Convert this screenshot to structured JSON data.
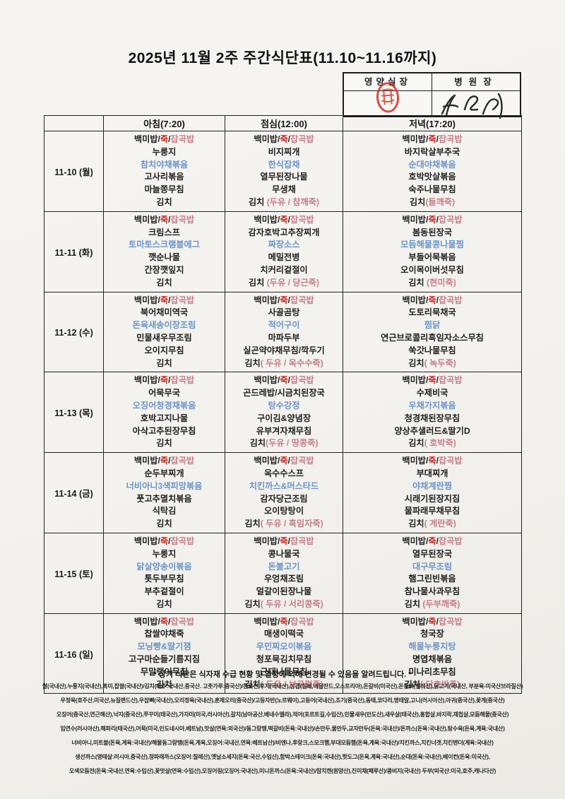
{
  "title": "2025년 11월 2주 주간식단표(11.10~11.16까지)",
  "approval": {
    "nutrition_manager_label": "영양실장",
    "hospital_director_label": "병원장",
    "stamp_icon": "red-seal-stamp",
    "signature_icon": "handwritten-signature",
    "stamp_color": "#cf2a1d"
  },
  "colors": {
    "accent_blue": "#6b94c8",
    "accent_red": "#c9241f",
    "accent_pink": "#c57f8b"
  },
  "table": {
    "corner_label": "",
    "headers": [
      "아침(7:20)",
      "점심(12:00)",
      "저녁(17:20)"
    ],
    "rows": [
      {
        "date": "11-10 (월)",
        "breakfast": [
          [
            [
              "백미밥/",
              "k"
            ],
            [
              "죽",
              "r"
            ],
            [
              "/",
              "k"
            ],
            [
              "잡곡밥",
              "p"
            ]
          ],
          "누룽지",
          [
            [
              "참치야채볶음",
              "b"
            ]
          ],
          "고사리볶음",
          "마늘쫑무침",
          "김치"
        ],
        "lunch": [
          [
            [
              "백미밥/",
              "k"
            ],
            [
              "죽",
              "r"
            ],
            [
              "/",
              "k"
            ],
            [
              "잡곡밥",
              "p"
            ]
          ],
          "비지찌개",
          [
            [
              "한식잡채",
              "b"
            ]
          ],
          "열무된장나물",
          "무생채",
          [
            [
              "김치 ",
              "k"
            ],
            [
              "(두유 / 참깨죽)",
              "p"
            ]
          ]
        ],
        "dinner": [
          [
            [
              "백미밥/",
              "k"
            ],
            [
              "죽",
              "r"
            ],
            [
              "/",
              "k"
            ],
            [
              "잡곡밥",
              "p"
            ]
          ],
          "바지락살부추국",
          [
            [
              "순대야채볶음",
              "b"
            ]
          ],
          "호박맛살볶음",
          "숙주나물무침",
          [
            [
              "김치",
              "k"
            ],
            [
              "(들깨죽)",
              "p"
            ]
          ]
        ]
      },
      {
        "date": "11-11 (화)",
        "breakfast": [
          [
            [
              "백미밥/",
              "k"
            ],
            [
              "죽",
              "r"
            ],
            [
              "/",
              "k"
            ],
            [
              "잡곡밥",
              "p"
            ]
          ],
          "크림스프",
          [
            [
              "토마토스크램블에그",
              "b"
            ]
          ],
          "깻순나물",
          "간장깻잎지",
          "김치"
        ],
        "lunch": [
          [
            [
              "백미밥/",
              "k"
            ],
            [
              "죽",
              "r"
            ],
            [
              "/",
              "k"
            ],
            [
              "잡곡밥",
              "p"
            ]
          ],
          "감자호박고추장찌개",
          [
            [
              "짜장소스",
              "b"
            ]
          ],
          "메밀전병",
          "치커리겉절이",
          [
            [
              "김치 ",
              "k"
            ],
            [
              "(두유 / 당근죽)",
              "p"
            ]
          ]
        ],
        "dinner": [
          [
            [
              "백미밥/",
              "k"
            ],
            [
              "죽",
              "r"
            ],
            [
              "/",
              "k"
            ],
            [
              "잡곡밥",
              "p"
            ]
          ],
          "봄동된장국",
          [
            [
              "모듬해물콩나물찜",
              "b"
            ]
          ],
          "부들어묵볶음",
          "오이목이버섯무침",
          [
            [
              "김치 ",
              "k"
            ],
            [
              "(현미죽)",
              "p"
            ]
          ]
        ]
      },
      {
        "date": "11-12 (수)",
        "breakfast": [
          [
            [
              "백미밥/",
              "k"
            ],
            [
              "죽",
              "r"
            ],
            [
              "/",
              "k"
            ],
            [
              "잡곡밥",
              "p"
            ]
          ],
          "북어채미역국",
          [
            [
              "돈육새송이장조림",
              "b"
            ]
          ],
          "민물새우무조림",
          "오이지무침",
          "김치"
        ],
        "lunch": [
          [
            [
              "백미밥/",
              "k"
            ],
            [
              "죽",
              "r"
            ],
            [
              "/",
              "k"
            ],
            [
              "잡곡밥",
              "p"
            ]
          ],
          "사골곰탕",
          [
            [
              "적어구이",
              "b"
            ]
          ],
          "마파두부",
          "실곤약야채무침/깍두기",
          [
            [
              "김치",
              "k"
            ],
            [
              "( 두유 / 옥수수죽)",
              "p"
            ]
          ]
        ],
        "dinner": [
          [
            [
              "백미밥/",
              "k"
            ],
            [
              "죽",
              "r"
            ],
            [
              "/",
              "k"
            ],
            [
              "잡곡밥",
              "p"
            ]
          ],
          "도토리묵채국",
          [
            [
              "찜닭",
              "b"
            ]
          ],
          "연근브로콜리흑임자소스무침",
          "쑥갓나물무침",
          [
            [
              "김치",
              "k"
            ],
            [
              "( 녹두죽)",
              "p"
            ]
          ]
        ]
      },
      {
        "date": "11-13 (목)",
        "breakfast": [
          [
            [
              "백미밥/",
              "k"
            ],
            [
              "죽",
              "r"
            ],
            [
              "/",
              "k"
            ],
            [
              "잡곡밥",
              "p"
            ]
          ],
          "어묵무국",
          [
            [
              "오징어청경채볶음",
              "b"
            ]
          ],
          "호박고지나물",
          "아삭고추된장무침",
          "김치"
        ],
        "lunch": [
          [
            [
              "백미밥/",
              "k"
            ],
            [
              "죽",
              "r"
            ],
            [
              "/",
              "k"
            ],
            [
              "잡곡밥",
              "p"
            ]
          ],
          "곤드레밥/시금치된장국",
          [
            [
              "탕수강정",
              "b"
            ]
          ],
          "구이김&양념장",
          "유부겨자채무침",
          [
            [
              "김치",
              "k"
            ],
            [
              "(두유 / 땅콩죽)",
              "p"
            ]
          ]
        ],
        "dinner": [
          [
            [
              "백미밥/",
              "k"
            ],
            [
              "죽",
              "r"
            ],
            [
              "/",
              "k"
            ],
            [
              "잡곡밥",
              "p"
            ]
          ],
          "수제비국",
          [
            [
              "우채가지볶음",
              "b"
            ]
          ],
          "청경채된장무침",
          "양상추샐러드&딸기D",
          [
            [
              "김치",
              "k"
            ],
            [
              "( 호박죽)",
              "p"
            ]
          ]
        ]
      },
      {
        "date": "11-14 (금)",
        "breakfast": [
          [
            [
              "백미밥/",
              "k"
            ],
            [
              "죽",
              "r"
            ],
            [
              "/",
              "k"
            ],
            [
              "잡곡밥",
              "p"
            ]
          ],
          "순두부찌개",
          [
            [
              "너비아니3색피망볶음",
              "b"
            ]
          ],
          "풋고추멸치볶음",
          "식탁김",
          "김치"
        ],
        "lunch": [
          [
            [
              "백미밥/",
              "k"
            ],
            [
              "죽",
              "r"
            ],
            [
              "/",
              "k"
            ],
            [
              "잡곡밥",
              "p"
            ]
          ],
          "옥수수스프",
          [
            [
              "치킨까스&머스타드",
              "b"
            ]
          ],
          "감자당근조림",
          "오이탕탕이",
          [
            [
              "김치",
              "k"
            ],
            [
              "( 두유 / 흑임자죽)",
              "p"
            ]
          ]
        ],
        "dinner": [
          [
            [
              "백미밥/",
              "k"
            ],
            [
              "죽",
              "r"
            ],
            [
              "/",
              "k"
            ],
            [
              "잡곡밥",
              "p"
            ]
          ],
          "부대찌개",
          [
            [
              "야채계란찜",
              "b"
            ]
          ],
          "시래기된장지짐",
          "물파래무채무침",
          [
            [
              "김치",
              "k"
            ],
            [
              "( 계란죽)",
              "p"
            ]
          ]
        ]
      },
      {
        "date": "11-15 (토)",
        "breakfast": [
          [
            [
              "백미밥/",
              "k"
            ],
            [
              "죽",
              "r"
            ],
            [
              "/",
              "k"
            ],
            [
              "잡곡밥",
              "p"
            ]
          ],
          "누룽지",
          [
            [
              "닭살양송이볶음",
              "b"
            ]
          ],
          "톳두부무침",
          "부추겉절이",
          "김치"
        ],
        "lunch": [
          [
            [
              "백미밥/",
              "k"
            ],
            [
              "죽",
              "r"
            ],
            [
              "/",
              "k"
            ],
            [
              "잡곡밥",
              "p"
            ]
          ],
          "콩나물국",
          [
            [
              "돈불고기",
              "b"
            ]
          ],
          "우엉채조림",
          "얼갈이된장나물",
          [
            [
              "김치",
              "k"
            ],
            [
              "( 두유 / 서리콩죽)",
              "p"
            ]
          ]
        ],
        "dinner": [
          [
            [
              "백미밥/",
              "k"
            ],
            [
              "죽",
              "r"
            ],
            [
              "/",
              "k"
            ],
            [
              "잡곡밥",
              "p"
            ]
          ],
          "열무된장국",
          [
            [
              "대구무조림",
              "b"
            ]
          ],
          "햄그린빈볶음",
          "참나물사과무침",
          [
            [
              "김치 ",
              "k"
            ],
            [
              "(두부깨죽)",
              "p"
            ]
          ]
        ]
      },
      {
        "date": "11-16 (일)",
        "breakfast": [
          [
            [
              "백미밥/",
              "k"
            ],
            [
              "죽",
              "r"
            ],
            [
              "/",
              "k"
            ],
            [
              "잡곡밥",
              "p"
            ]
          ],
          "찹쌀야채죽",
          [
            [
              "모닝빵&딸기잼",
              "b"
            ]
          ],
          "고구마순들기름지짐",
          "무말랭이무침",
          "김치"
        ],
        "lunch": [
          [
            [
              "백미밥/",
              "k"
            ],
            [
              "죽",
              "r"
            ],
            [
              "/",
              "k"
            ],
            [
              "잡곡밥",
              "p"
            ]
          ],
          "매생이떡국",
          [
            [
              "우민찌오이볶음",
              "b"
            ]
          ],
          "청포묵김치무침",
          "근대나물무침",
          [
            [
              "김치",
              "k"
            ],
            [
              "( 두유 / 브로컬죽)",
              "p"
            ]
          ]
        ],
        "dinner": [
          [
            [
              "백미밥/",
              "k"
            ],
            [
              "죽",
              "r"
            ],
            [
              "/",
              "k"
            ],
            [
              "잡곡밥",
              "p"
            ]
          ],
          "청국장",
          [
            [
              "해물누룽지탕",
              "b"
            ]
          ],
          "명엽채볶음",
          "미나리초무침",
          [
            [
              "김치",
              "k"
            ],
            [
              "( 단호박죽)",
              "p"
            ]
          ]
        ]
      }
    ]
  },
  "footnote": "* 상기 식단은 식자재 수급 현황 및 일정에 의해 변경될 수 있음을 알려드립니다. *",
  "origin_lines": [
    "쌀(국내산),누룽지(국내산),흑미,찹쌀(국내산)/김치(배추:국내산,중국산. 고춧가루:중국산)/돈육전,후지(국내산),삼겹(칠레,네덜란드,오스트리아),돈갈비(미국산),돈등뼈(칠레산),닭고기(국내산, 부분육-미국산브라질산)",
    "우정육(호주산,미국산,뉴질랜드산),우잡뼈(국내산),오리정육(국내산),훈제오리(중국산)/고등자반(노르웨이),고등어(국내산),조기(중국산),동태,코다리,명태알,고니(러시아산),아귀(중국산),꽃게(중국산)",
    "오징어(중국산,연근해산),낙지(중국산),쭈꾸미(태국산),가자미(미국,러시아산),갈치(남아공산,베네수엘라),적어(포르트길,수입산),민물새우(인도산),새우살(태국산),홍합살,바지락,재첩살,모듬해물(중국산)",
    "임연수(러시아산),해파리(태국산),어묵(미국,인도네시아,베트남),맛살(연육:외국산)/동그랑땡,떡갈비(돈육:국내산)/손만두,물만두,교자만두(돈육:국내산)/돈까스(돈육:국내산),탕수육(돈육,계육:국내산)",
    "너비아니,미트볼(돈육,계육:국내산)/해물동그랑땡(돈육,계육,오징어:국내산,연육:베트남산)/비엔나,후랑크,스모크햄,부대모듬햄(돈육,계육:국내산)/치킨까스,치킨너겟,치킨텐더(계육:국내산)",
    "생선까스(명태살:러시아,중국산),청파래까스(오징어:칠레산),옛날소세지(돈육:국산,수입산),함박스테이크(돈육:국내산),핫도그(돈육,계육:국내산),순대(돈육:국내산),베이컨(돈육:미국산),",
    "오색모듬전(돈육:국내산,연육:수입산),꽃맛살(연육:수입산),오징어링(오징어:국내산),미니돈까스(돈육:국내산)/참치캔(원양산),진미채(페루산)/콩비지(국내산) 두부(외국산:미국,호주,캐나다산)"
  ]
}
